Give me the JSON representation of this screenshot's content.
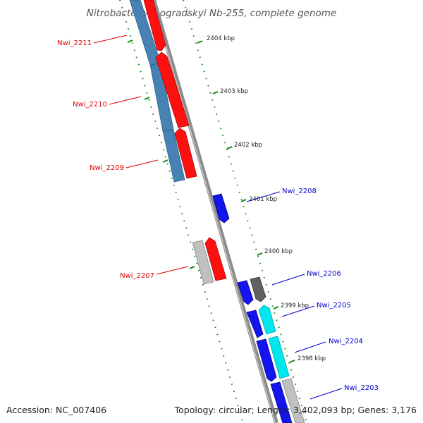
{
  "title": "Nitrobacter winogradskyi Nb-255, complete genome",
  "footer": {
    "accession": "Accession: NC_007406",
    "summary": "Topology: circular; Length: 3,402,093 bp; Genes: 3,176"
  },
  "scale": {
    "unit": "kbp",
    "ticks": [
      "2404 kbp",
      "2403 kbp",
      "2402 kbp",
      "2401 kbp",
      "2400 kbp",
      "2399 kbp",
      "2398 kbp"
    ]
  },
  "genes": {
    "left_strand": [
      "Nwi_2211",
      "Nwi_2210",
      "Nwi_2209",
      "Nwi_2207"
    ],
    "right_strand": [
      "Nwi_2208",
      "Nwi_2206",
      "Nwi_2205",
      "Nwi_2204",
      "Nwi_2203"
    ]
  },
  "colors": {
    "left_label": "#dd0000",
    "right_label": "#0000cc",
    "red_gene": "#ff1010",
    "steelblue_gene": "#4682b4",
    "blue_gene": "#1414ee",
    "cyan_gene": "#00e8ee",
    "grey_gene": "#c0c0c0",
    "dark_grey_gene": "#606060",
    "backbone": "#909090",
    "tick_marks": "#0a8a0a"
  }
}
